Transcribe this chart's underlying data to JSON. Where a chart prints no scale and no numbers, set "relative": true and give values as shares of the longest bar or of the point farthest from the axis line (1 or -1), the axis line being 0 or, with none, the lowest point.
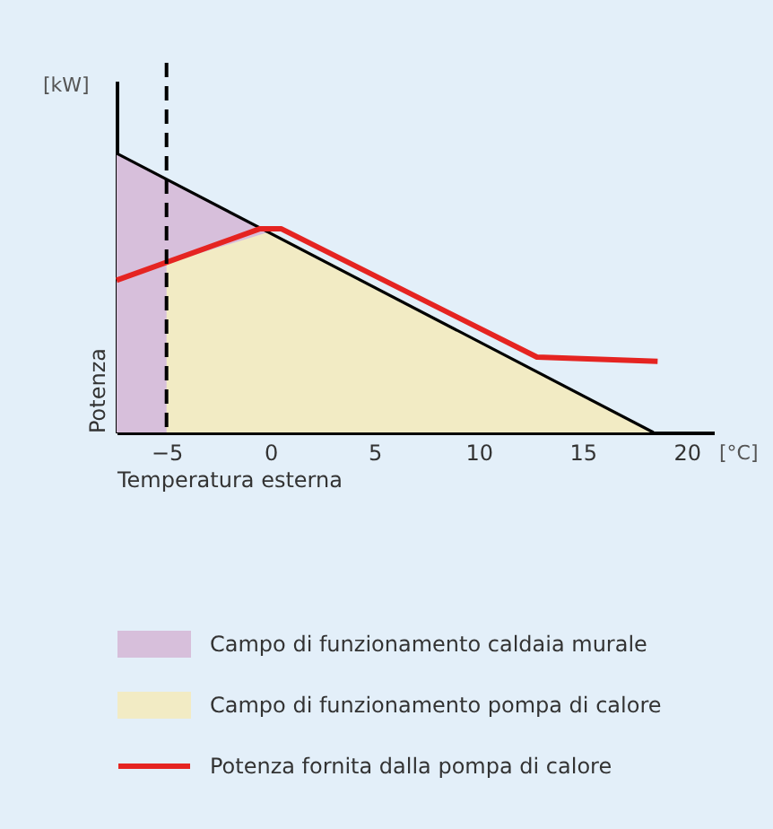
{
  "chart_data": {
    "type": "area",
    "relative": true,
    "xlabel": "Temperatura esterna",
    "ylabel": "Potenza",
    "annotations": [
      "[kW]",
      "[°C]"
    ],
    "xlim": [
      -7.4,
      21.3
    ],
    "xticks": [
      -5,
      0,
      5,
      10,
      15,
      20
    ],
    "grid": false,
    "legend": "bottom",
    "ref_lines": [
      {
        "axis": "x",
        "value": -5,
        "color": "#000000",
        "line_style": "dashed"
      }
    ],
    "series": [
      {
        "name": "Campo di funzionamento caldaia murale",
        "color": "#d7bfdb",
        "x": [
          -7.4,
          0
        ],
        "values": [
          1,
          0.71
        ]
      },
      {
        "name": "Campo di funzionamento pompa di calore",
        "color": "#f2ebc4",
        "x": [
          -5,
          0,
          18.4
        ],
        "values": [
          0.605,
          0.72,
          0
        ]
      },
      {
        "type": "line",
        "color": "#000000",
        "x": [
          -7.4,
          18.4
        ],
        "values": [
          1,
          0
        ]
      },
      {
        "name": "Potenza fornita dalla pompa di calore",
        "type": "line",
        "color": "#e52421",
        "x": [
          -7.4,
          -0.5,
          0.5,
          12.8,
          18.6
        ],
        "values": [
          0.545,
          0.73,
          0.73,
          0.27,
          0.255
        ]
      }
    ]
  }
}
